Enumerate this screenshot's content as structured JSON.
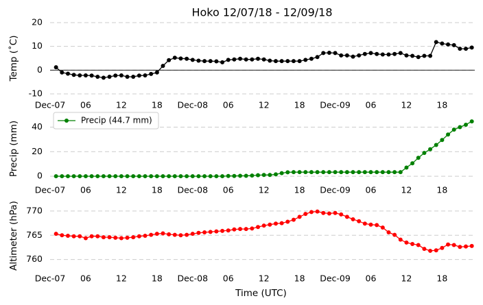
{
  "chart_data": [
    {
      "type": "line",
      "title": "Hoko 12/07/18 - 12/09/18",
      "ylabel": "Temp (˚C)",
      "color": "#000000",
      "grid": true,
      "hline": 0,
      "xlim": [
        "2018-12-07T00:00",
        "2018-12-09T23:30"
      ],
      "ylim": [
        -10,
        20
      ],
      "yticks": [
        -10,
        0,
        10,
        20
      ],
      "xticks": [
        {
          "value": "2018-12-07T00:00",
          "label": "Dec-07"
        },
        {
          "value": "2018-12-07T06:00",
          "label": "06"
        },
        {
          "value": "2018-12-07T12:00",
          "label": "12"
        },
        {
          "value": "2018-12-07T18:00",
          "label": "18"
        },
        {
          "value": "2018-12-08T00:00",
          "label": "Dec-08"
        },
        {
          "value": "2018-12-08T06:00",
          "label": "06"
        },
        {
          "value": "2018-12-08T12:00",
          "label": "12"
        },
        {
          "value": "2018-12-08T18:00",
          "label": "18"
        },
        {
          "value": "2018-12-09T00:00",
          "label": "Dec-09"
        },
        {
          "value": "2018-12-09T06:00",
          "label": "06"
        },
        {
          "value": "2018-12-09T12:00",
          "label": "12"
        },
        {
          "value": "2018-12-09T18:00",
          "label": "18"
        }
      ],
      "x": [
        "2018-12-07T01:00",
        "2018-12-07T02:00",
        "2018-12-07T03:00",
        "2018-12-07T04:00",
        "2018-12-07T05:00",
        "2018-12-07T06:00",
        "2018-12-07T07:00",
        "2018-12-07T08:00",
        "2018-12-07T09:00",
        "2018-12-07T10:00",
        "2018-12-07T11:00",
        "2018-12-07T12:00",
        "2018-12-07T13:00",
        "2018-12-07T14:00",
        "2018-12-07T15:00",
        "2018-12-07T16:00",
        "2018-12-07T17:00",
        "2018-12-07T18:00",
        "2018-12-07T19:00",
        "2018-12-07T20:00",
        "2018-12-07T21:00",
        "2018-12-07T22:00",
        "2018-12-07T23:00",
        "2018-12-08T00:00",
        "2018-12-08T01:00",
        "2018-12-08T02:00",
        "2018-12-08T03:00",
        "2018-12-08T04:00",
        "2018-12-08T05:00",
        "2018-12-08T06:00",
        "2018-12-08T07:00",
        "2018-12-08T08:00",
        "2018-12-08T09:00",
        "2018-12-08T10:00",
        "2018-12-08T11:00",
        "2018-12-08T12:00",
        "2018-12-08T13:00",
        "2018-12-08T14:00",
        "2018-12-08T15:00",
        "2018-12-08T16:00",
        "2018-12-08T17:00",
        "2018-12-08T18:00",
        "2018-12-08T19:00",
        "2018-12-08T20:00",
        "2018-12-08T21:00",
        "2018-12-08T22:00",
        "2018-12-08T23:00",
        "2018-12-09T00:00",
        "2018-12-09T01:00",
        "2018-12-09T02:00",
        "2018-12-09T03:00",
        "2018-12-09T04:00",
        "2018-12-09T05:00",
        "2018-12-09T06:00",
        "2018-12-09T07:00",
        "2018-12-09T08:00",
        "2018-12-09T09:00",
        "2018-12-09T10:00",
        "2018-12-09T11:00",
        "2018-12-09T12:00",
        "2018-12-09T13:00",
        "2018-12-09T14:00",
        "2018-12-09T15:00",
        "2018-12-09T16:00",
        "2018-12-09T17:00",
        "2018-12-09T18:00",
        "2018-12-09T19:00",
        "2018-12-09T20:00",
        "2018-12-09T21:00",
        "2018-12-09T22:00",
        "2018-12-09T23:00"
      ],
      "values": [
        1.2,
        -1,
        -1.5,
        -2,
        -2.2,
        -2.2,
        -2.3,
        -2.8,
        -3.2,
        -2.8,
        -2.3,
        -2.2,
        -2.8,
        -2.8,
        -2.3,
        -2.2,
        -1.6,
        -1,
        1.8,
        4.2,
        5.2,
        4.9,
        4.8,
        4.3,
        4,
        3.8,
        3.8,
        3.7,
        3.3,
        4.3,
        4.5,
        4.8,
        4.5,
        4.5,
        4.8,
        4.5,
        4,
        3.8,
        3.8,
        3.8,
        3.8,
        3.8,
        4.3,
        4.8,
        5.5,
        7.2,
        7.3,
        7.2,
        6.2,
        6.2,
        5.7,
        6.2,
        6.8,
        7.2,
        6.8,
        6.6,
        6.6,
        6.8,
        7.2,
        6.2,
        6,
        5.5,
        6,
        6,
        11.8,
        11.2,
        10.8,
        10.5,
        9,
        9,
        9.5
      ]
    },
    {
      "type": "line",
      "ylabel": "Precip (mm)",
      "grid": true,
      "legend": "upper left",
      "xlim": [
        "2018-12-07T00:00",
        "2018-12-09T23:30"
      ],
      "ylim": [
        -2.2,
        47
      ],
      "yticks": [
        0,
        20,
        40
      ],
      "xticks": [
        {
          "value": "2018-12-07T00:00",
          "label": "Dec-07"
        },
        {
          "value": "2018-12-07T06:00",
          "label": "06"
        },
        {
          "value": "2018-12-07T12:00",
          "label": "12"
        },
        {
          "value": "2018-12-07T18:00",
          "label": "18"
        },
        {
          "value": "2018-12-08T00:00",
          "label": "Dec-08"
        },
        {
          "value": "2018-12-08T06:00",
          "label": "06"
        },
        {
          "value": "2018-12-08T12:00",
          "label": "12"
        },
        {
          "value": "2018-12-08T18:00",
          "label": "18"
        },
        {
          "value": "2018-12-09T00:00",
          "label": "Dec-09"
        },
        {
          "value": "2018-12-09T06:00",
          "label": "06"
        },
        {
          "value": "2018-12-09T12:00",
          "label": "12"
        },
        {
          "value": "2018-12-09T18:00",
          "label": "18"
        }
      ],
      "x": [
        "2018-12-07T01:00",
        "2018-12-07T02:00",
        "2018-12-07T03:00",
        "2018-12-07T04:00",
        "2018-12-07T05:00",
        "2018-12-07T06:00",
        "2018-12-07T07:00",
        "2018-12-07T08:00",
        "2018-12-07T09:00",
        "2018-12-07T10:00",
        "2018-12-07T11:00",
        "2018-12-07T12:00",
        "2018-12-07T13:00",
        "2018-12-07T14:00",
        "2018-12-07T15:00",
        "2018-12-07T16:00",
        "2018-12-07T17:00",
        "2018-12-07T18:00",
        "2018-12-07T19:00",
        "2018-12-07T20:00",
        "2018-12-07T21:00",
        "2018-12-07T22:00",
        "2018-12-07T23:00",
        "2018-12-08T00:00",
        "2018-12-08T01:00",
        "2018-12-08T02:00",
        "2018-12-08T03:00",
        "2018-12-08T04:00",
        "2018-12-08T05:00",
        "2018-12-08T06:00",
        "2018-12-08T07:00",
        "2018-12-08T08:00",
        "2018-12-08T09:00",
        "2018-12-08T10:00",
        "2018-12-08T11:00",
        "2018-12-08T12:00",
        "2018-12-08T13:00",
        "2018-12-08T14:00",
        "2018-12-08T15:00",
        "2018-12-08T16:00",
        "2018-12-08T17:00",
        "2018-12-08T18:00",
        "2018-12-08T19:00",
        "2018-12-08T20:00",
        "2018-12-08T21:00",
        "2018-12-08T22:00",
        "2018-12-08T23:00",
        "2018-12-09T00:00",
        "2018-12-09T01:00",
        "2018-12-09T02:00",
        "2018-12-09T03:00",
        "2018-12-09T04:00",
        "2018-12-09T05:00",
        "2018-12-09T06:00",
        "2018-12-09T07:00",
        "2018-12-09T08:00",
        "2018-12-09T09:00",
        "2018-12-09T10:00",
        "2018-12-09T11:00",
        "2018-12-09T12:00",
        "2018-12-09T13:00",
        "2018-12-09T14:00",
        "2018-12-09T15:00",
        "2018-12-09T16:00",
        "2018-12-09T17:00",
        "2018-12-09T18:00",
        "2018-12-09T19:00",
        "2018-12-09T20:00",
        "2018-12-09T21:00",
        "2018-12-09T22:00",
        "2018-12-09T23:00"
      ],
      "series": [
        {
          "name": "Precip (44.7 mm)",
          "color": "#008000",
          "values": [
            0,
            0,
            0,
            0,
            0,
            0,
            0,
            0,
            0,
            0,
            0,
            0,
            0,
            0,
            0,
            0,
            0,
            0,
            0,
            0,
            0,
            0,
            0,
            0,
            0,
            0,
            0,
            0,
            0,
            0.2,
            0.2,
            0.3,
            0.3,
            0.5,
            0.8,
            1,
            1,
            1.5,
            2.5,
            3.2,
            3.3,
            3.3,
            3.3,
            3.3,
            3.3,
            3.3,
            3.3,
            3.3,
            3.3,
            3.3,
            3.3,
            3.3,
            3.3,
            3.3,
            3.3,
            3.3,
            3.3,
            3.3,
            3.3,
            7,
            10.5,
            15,
            19,
            22,
            25.5,
            29.5,
            34,
            38,
            40,
            42,
            44.7
          ]
        }
      ]
    },
    {
      "type": "line",
      "ylabel": "Altimeter (hPa)",
      "xlabel": "Time (UTC)",
      "color": "#ff0000",
      "grid": true,
      "xlim": [
        "2018-12-07T00:00",
        "2018-12-09T23:30"
      ],
      "ylim": [
        758.4,
        771.4
      ],
      "yticks": [
        760,
        765,
        770
      ],
      "xticks": [
        {
          "value": "2018-12-07T00:00",
          "label": "Dec-07"
        },
        {
          "value": "2018-12-07T06:00",
          "label": "06"
        },
        {
          "value": "2018-12-07T12:00",
          "label": "12"
        },
        {
          "value": "2018-12-07T18:00",
          "label": "18"
        },
        {
          "value": "2018-12-08T00:00",
          "label": "Dec-08"
        },
        {
          "value": "2018-12-08T06:00",
          "label": "06"
        },
        {
          "value": "2018-12-08T12:00",
          "label": "12"
        },
        {
          "value": "2018-12-08T18:00",
          "label": "18"
        },
        {
          "value": "2018-12-09T00:00",
          "label": "Dec-09"
        },
        {
          "value": "2018-12-09T06:00",
          "label": "06"
        },
        {
          "value": "2018-12-09T12:00",
          "label": "12"
        },
        {
          "value": "2018-12-09T18:00",
          "label": "18"
        }
      ],
      "x": [
        "2018-12-07T01:00",
        "2018-12-07T02:00",
        "2018-12-07T03:00",
        "2018-12-07T04:00",
        "2018-12-07T05:00",
        "2018-12-07T06:00",
        "2018-12-07T07:00",
        "2018-12-07T08:00",
        "2018-12-07T09:00",
        "2018-12-07T10:00",
        "2018-12-07T11:00",
        "2018-12-07T12:00",
        "2018-12-07T13:00",
        "2018-12-07T14:00",
        "2018-12-07T15:00",
        "2018-12-07T16:00",
        "2018-12-07T17:00",
        "2018-12-07T18:00",
        "2018-12-07T19:00",
        "2018-12-07T20:00",
        "2018-12-07T21:00",
        "2018-12-07T22:00",
        "2018-12-07T23:00",
        "2018-12-08T00:00",
        "2018-12-08T01:00",
        "2018-12-08T02:00",
        "2018-12-08T03:00",
        "2018-12-08T04:00",
        "2018-12-08T05:00",
        "2018-12-08T06:00",
        "2018-12-08T07:00",
        "2018-12-08T08:00",
        "2018-12-08T09:00",
        "2018-12-08T10:00",
        "2018-12-08T11:00",
        "2018-12-08T12:00",
        "2018-12-08T13:00",
        "2018-12-08T14:00",
        "2018-12-08T15:00",
        "2018-12-08T16:00",
        "2018-12-08T17:00",
        "2018-12-08T18:00",
        "2018-12-08T19:00",
        "2018-12-08T20:00",
        "2018-12-08T21:00",
        "2018-12-08T22:00",
        "2018-12-08T23:00",
        "2018-12-09T00:00",
        "2018-12-09T01:00",
        "2018-12-09T02:00",
        "2018-12-09T03:00",
        "2018-12-09T04:00",
        "2018-12-09T05:00",
        "2018-12-09T06:00",
        "2018-12-09T07:00",
        "2018-12-09T08:00",
        "2018-12-09T09:00",
        "2018-12-09T10:00",
        "2018-12-09T11:00",
        "2018-12-09T12:00",
        "2018-12-09T13:00",
        "2018-12-09T14:00",
        "2018-12-09T15:00",
        "2018-12-09T16:00",
        "2018-12-09T17:00",
        "2018-12-09T18:00",
        "2018-12-09T19:00",
        "2018-12-09T20:00",
        "2018-12-09T21:00",
        "2018-12-09T22:00",
        "2018-12-09T23:00"
      ],
      "values": [
        765.3,
        765,
        764.9,
        764.8,
        764.8,
        764.4,
        764.8,
        764.8,
        764.6,
        764.6,
        764.5,
        764.4,
        764.5,
        764.6,
        764.8,
        764.9,
        765.1,
        765.3,
        765.4,
        765.2,
        765.1,
        765,
        765.1,
        765.3,
        765.5,
        765.6,
        765.7,
        765.8,
        765.9,
        766,
        766.2,
        766.3,
        766.3,
        766.4,
        766.7,
        767,
        767.2,
        767.4,
        767.5,
        767.8,
        768.2,
        768.8,
        769.4,
        769.8,
        769.9,
        769.6,
        769.5,
        769.6,
        769.3,
        768.8,
        768.3,
        767.9,
        767.4,
        767.2,
        767.1,
        766.6,
        765.6,
        765.1,
        764.1,
        763.5,
        763.2,
        763,
        762.2,
        761.8,
        761.9,
        762.4,
        763.1,
        763,
        762.6,
        762.7,
        762.8
      ]
    }
  ]
}
